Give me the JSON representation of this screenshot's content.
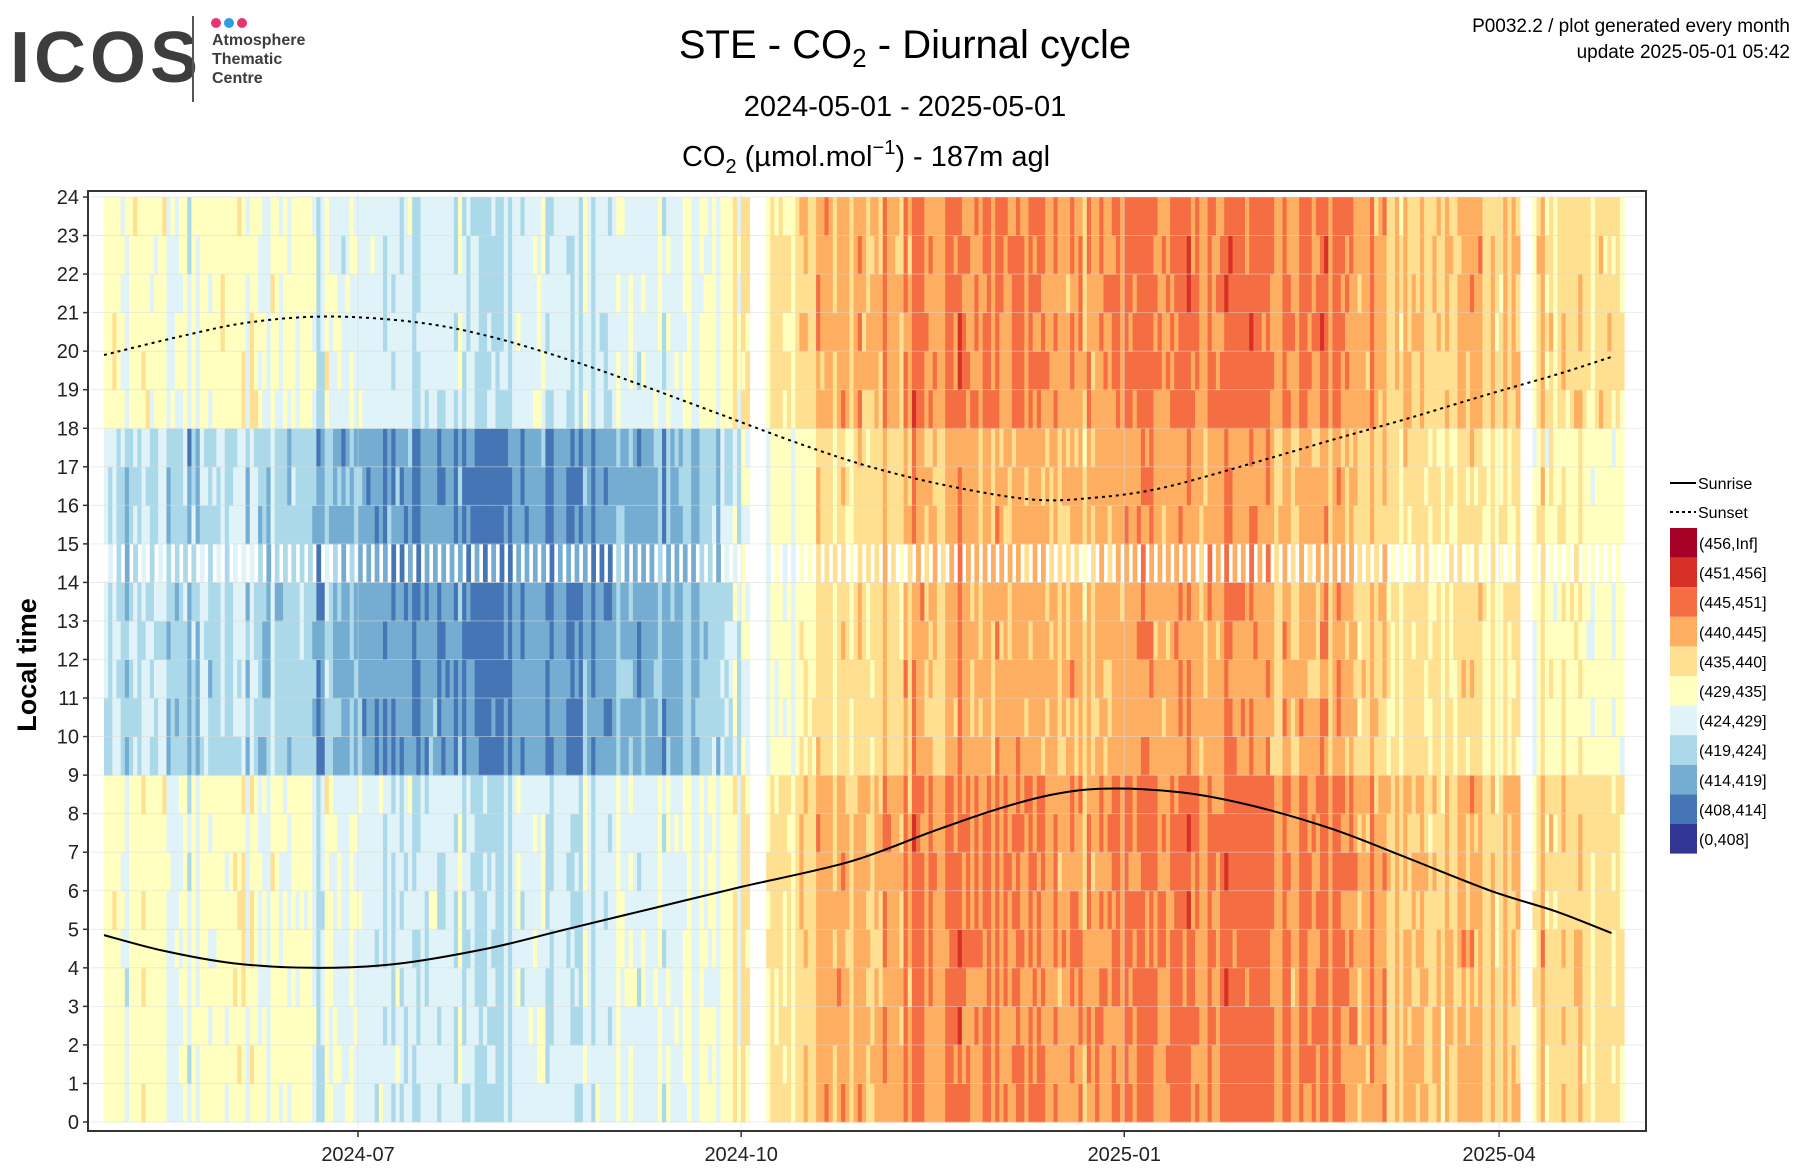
{
  "logo": {
    "word": "ICOS",
    "lines": [
      "Atmosphere",
      "Thematic",
      "Centre"
    ],
    "dot_colors": [
      "#e8356d",
      "#2a9fe3",
      "#e8356d"
    ]
  },
  "header": {
    "meta_line1": "P0032.2 / plot generated every month",
    "meta_line2": "update  2025-05-01 05:42"
  },
  "chart_data": {
    "type": "heatmap",
    "title_parts": [
      "STE - CO",
      "2",
      " - Diurnal cycle"
    ],
    "subtitle": "2024-05-01 - 2025-05-01",
    "unit_parts": [
      "CO",
      "2",
      " (",
      "µmol.mol",
      "−1",
      ") - 187m agl"
    ],
    "ylabel": "Local time",
    "xlabel": "",
    "x_range": [
      "2024-05-01",
      "2025-05-01"
    ],
    "x_ticks": [
      {
        "date": "2024-07-01",
        "label": "2024-07"
      },
      {
        "date": "2024-10-01",
        "label": "2024-10"
      },
      {
        "date": "2025-01-01",
        "label": "2025-01"
      },
      {
        "date": "2025-04-01",
        "label": "2025-04"
      }
    ],
    "ylim": [
      0,
      24
    ],
    "y_ticks": [
      0,
      1,
      2,
      3,
      4,
      5,
      6,
      7,
      8,
      9,
      10,
      11,
      12,
      13,
      14,
      15,
      16,
      17,
      18,
      19,
      20,
      21,
      22,
      23,
      24
    ],
    "grid": true,
    "legend_position": "right",
    "line_legend": [
      {
        "label": "Sunrise",
        "style": "solid"
      },
      {
        "label": "Sunset",
        "style": "dotted"
      }
    ],
    "color_bins": [
      {
        "label": "(456,Inf]",
        "color": "#a50026"
      },
      {
        "label": "(451,456]",
        "color": "#d73027"
      },
      {
        "label": "(445,451]",
        "color": "#f46d43"
      },
      {
        "label": "(440,445]",
        "color": "#fdae61"
      },
      {
        "label": "(435,440]",
        "color": "#fee090"
      },
      {
        "label": "(429,435]",
        "color": "#ffffbf"
      },
      {
        "label": "(424,429]",
        "color": "#e0f3f8"
      },
      {
        "label": "(419,424]",
        "color": "#abd9e9"
      },
      {
        "label": "(414,419]",
        "color": "#74add1"
      },
      {
        "label": "(408,414]",
        "color": "#4575b4"
      },
      {
        "label": "(0,408]",
        "color": "#313695"
      }
    ],
    "sunrise": [
      {
        "date": "2024-05-01",
        "hour": 4.85
      },
      {
        "date": "2024-05-15",
        "hour": 4.45
      },
      {
        "date": "2024-06-01",
        "hour": 4.12
      },
      {
        "date": "2024-06-20",
        "hour": 4.0
      },
      {
        "date": "2024-07-10",
        "hour": 4.1
      },
      {
        "date": "2024-08-01",
        "hour": 4.5
      },
      {
        "date": "2024-08-20",
        "hour": 5.0
      },
      {
        "date": "2024-09-10",
        "hour": 5.55
      },
      {
        "date": "2024-10-01",
        "hour": 6.1
      },
      {
        "date": "2024-10-27",
        "hour": 6.75
      },
      {
        "date": "2024-11-15",
        "hour": 7.5
      },
      {
        "date": "2024-12-01",
        "hour": 8.1
      },
      {
        "date": "2024-12-15",
        "hour": 8.5
      },
      {
        "date": "2024-12-28",
        "hour": 8.65
      },
      {
        "date": "2025-01-15",
        "hour": 8.55
      },
      {
        "date": "2025-02-01",
        "hour": 8.2
      },
      {
        "date": "2025-02-20",
        "hour": 7.6
      },
      {
        "date": "2025-03-10",
        "hour": 6.85
      },
      {
        "date": "2025-03-30",
        "hour": 6.0
      },
      {
        "date": "2025-04-15",
        "hour": 5.45
      },
      {
        "date": "2025-04-28",
        "hour": 4.9
      }
    ],
    "sunset": [
      {
        "date": "2024-05-01",
        "hour": 19.9
      },
      {
        "date": "2024-05-20",
        "hour": 20.4
      },
      {
        "date": "2024-06-05",
        "hour": 20.75
      },
      {
        "date": "2024-06-24",
        "hour": 20.9
      },
      {
        "date": "2024-07-15",
        "hour": 20.75
      },
      {
        "date": "2024-08-01",
        "hour": 20.4
      },
      {
        "date": "2024-08-20",
        "hour": 19.8
      },
      {
        "date": "2024-09-05",
        "hour": 19.2
      },
      {
        "date": "2024-09-25",
        "hour": 18.4
      },
      {
        "date": "2024-10-15",
        "hour": 17.6
      },
      {
        "date": "2024-11-01",
        "hour": 17.0
      },
      {
        "date": "2024-11-20",
        "hour": 16.5
      },
      {
        "date": "2024-12-10",
        "hour": 16.15
      },
      {
        "date": "2024-12-25",
        "hour": 16.2
      },
      {
        "date": "2025-01-10",
        "hour": 16.45
      },
      {
        "date": "2025-02-01",
        "hour": 17.1
      },
      {
        "date": "2025-02-20",
        "hour": 17.7
      },
      {
        "date": "2025-03-10",
        "hour": 18.25
      },
      {
        "date": "2025-03-30",
        "hour": 18.9
      },
      {
        "date": "2025-04-15",
        "hour": 19.4
      },
      {
        "date": "2025-04-28",
        "hour": 19.85
      }
    ],
    "seasonal_mean": [
      {
        "date": "2024-05-01",
        "night": 432,
        "day": 424
      },
      {
        "date": "2024-06-15",
        "night": 429,
        "day": 420
      },
      {
        "date": "2024-08-01",
        "night": 424,
        "day": 413
      },
      {
        "date": "2024-09-15",
        "night": 428,
        "day": 418
      },
      {
        "date": "2024-10-15",
        "night": 438,
        "day": 433
      },
      {
        "date": "2024-11-15",
        "night": 446,
        "day": 442
      },
      {
        "date": "2024-12-15",
        "night": 444,
        "day": 441
      },
      {
        "date": "2025-01-15",
        "night": 447,
        "day": 444
      },
      {
        "date": "2025-02-15",
        "night": 446,
        "day": 442
      },
      {
        "date": "2025-03-15",
        "night": 440,
        "day": 436
      },
      {
        "date": "2025-04-30",
        "night": 437,
        "day": 432
      }
    ]
  }
}
